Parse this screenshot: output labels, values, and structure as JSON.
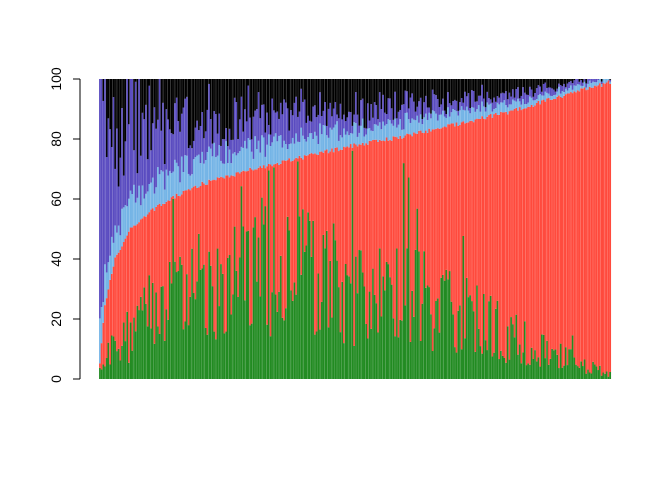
{
  "chart_data": {
    "type": "bar",
    "stacked": true,
    "sorted_by_cumulative": "segment_2_top",
    "n_bars": 300,
    "ylim": [
      0,
      100
    ],
    "y_ticks": [
      {
        "value": 0,
        "label": "0"
      },
      {
        "value": 20,
        "label": "20"
      },
      {
        "value": 40,
        "label": "40"
      },
      {
        "value": 60,
        "label": "60"
      },
      {
        "value": 80,
        "label": "80"
      },
      {
        "value": 100,
        "label": "100"
      }
    ],
    "title": "",
    "xlabel": "",
    "ylabel": "",
    "grid": false,
    "legend": "none",
    "segment_colors": [
      "#228B22",
      "#FF4A3D",
      "#74B4E6",
      "#5A4CC0",
      "#000000"
    ],
    "profile": {
      "red_top_curve": [
        [
          0.0,
          5
        ],
        [
          0.01,
          25
        ],
        [
          0.03,
          40
        ],
        [
          0.06,
          50
        ],
        [
          0.1,
          56
        ],
        [
          0.15,
          61
        ],
        [
          0.2,
          65
        ],
        [
          0.3,
          70
        ],
        [
          0.4,
          74
        ],
        [
          0.5,
          78
        ],
        [
          0.6,
          81
        ],
        [
          0.7,
          85
        ],
        [
          0.8,
          89
        ],
        [
          0.9,
          94
        ],
        [
          1.0,
          99
        ]
      ],
      "green_profile": [
        [
          0.0,
          5
        ],
        [
          0.1,
          22
        ],
        [
          0.2,
          30
        ],
        [
          0.35,
          38
        ],
        [
          0.5,
          30
        ],
        [
          0.65,
          26
        ],
        [
          0.8,
          15
        ],
        [
          0.9,
          8
        ],
        [
          1.0,
          2
        ]
      ],
      "lightblue_thickness": [
        [
          0.0,
          10
        ],
        [
          0.5,
          6
        ],
        [
          1.0,
          1
        ]
      ],
      "purple_profile": [
        [
          0.0,
          65
        ],
        [
          0.05,
          30
        ],
        [
          0.15,
          14
        ],
        [
          0.4,
          8
        ],
        [
          0.7,
          4
        ],
        [
          1.0,
          1
        ]
      ]
    }
  }
}
